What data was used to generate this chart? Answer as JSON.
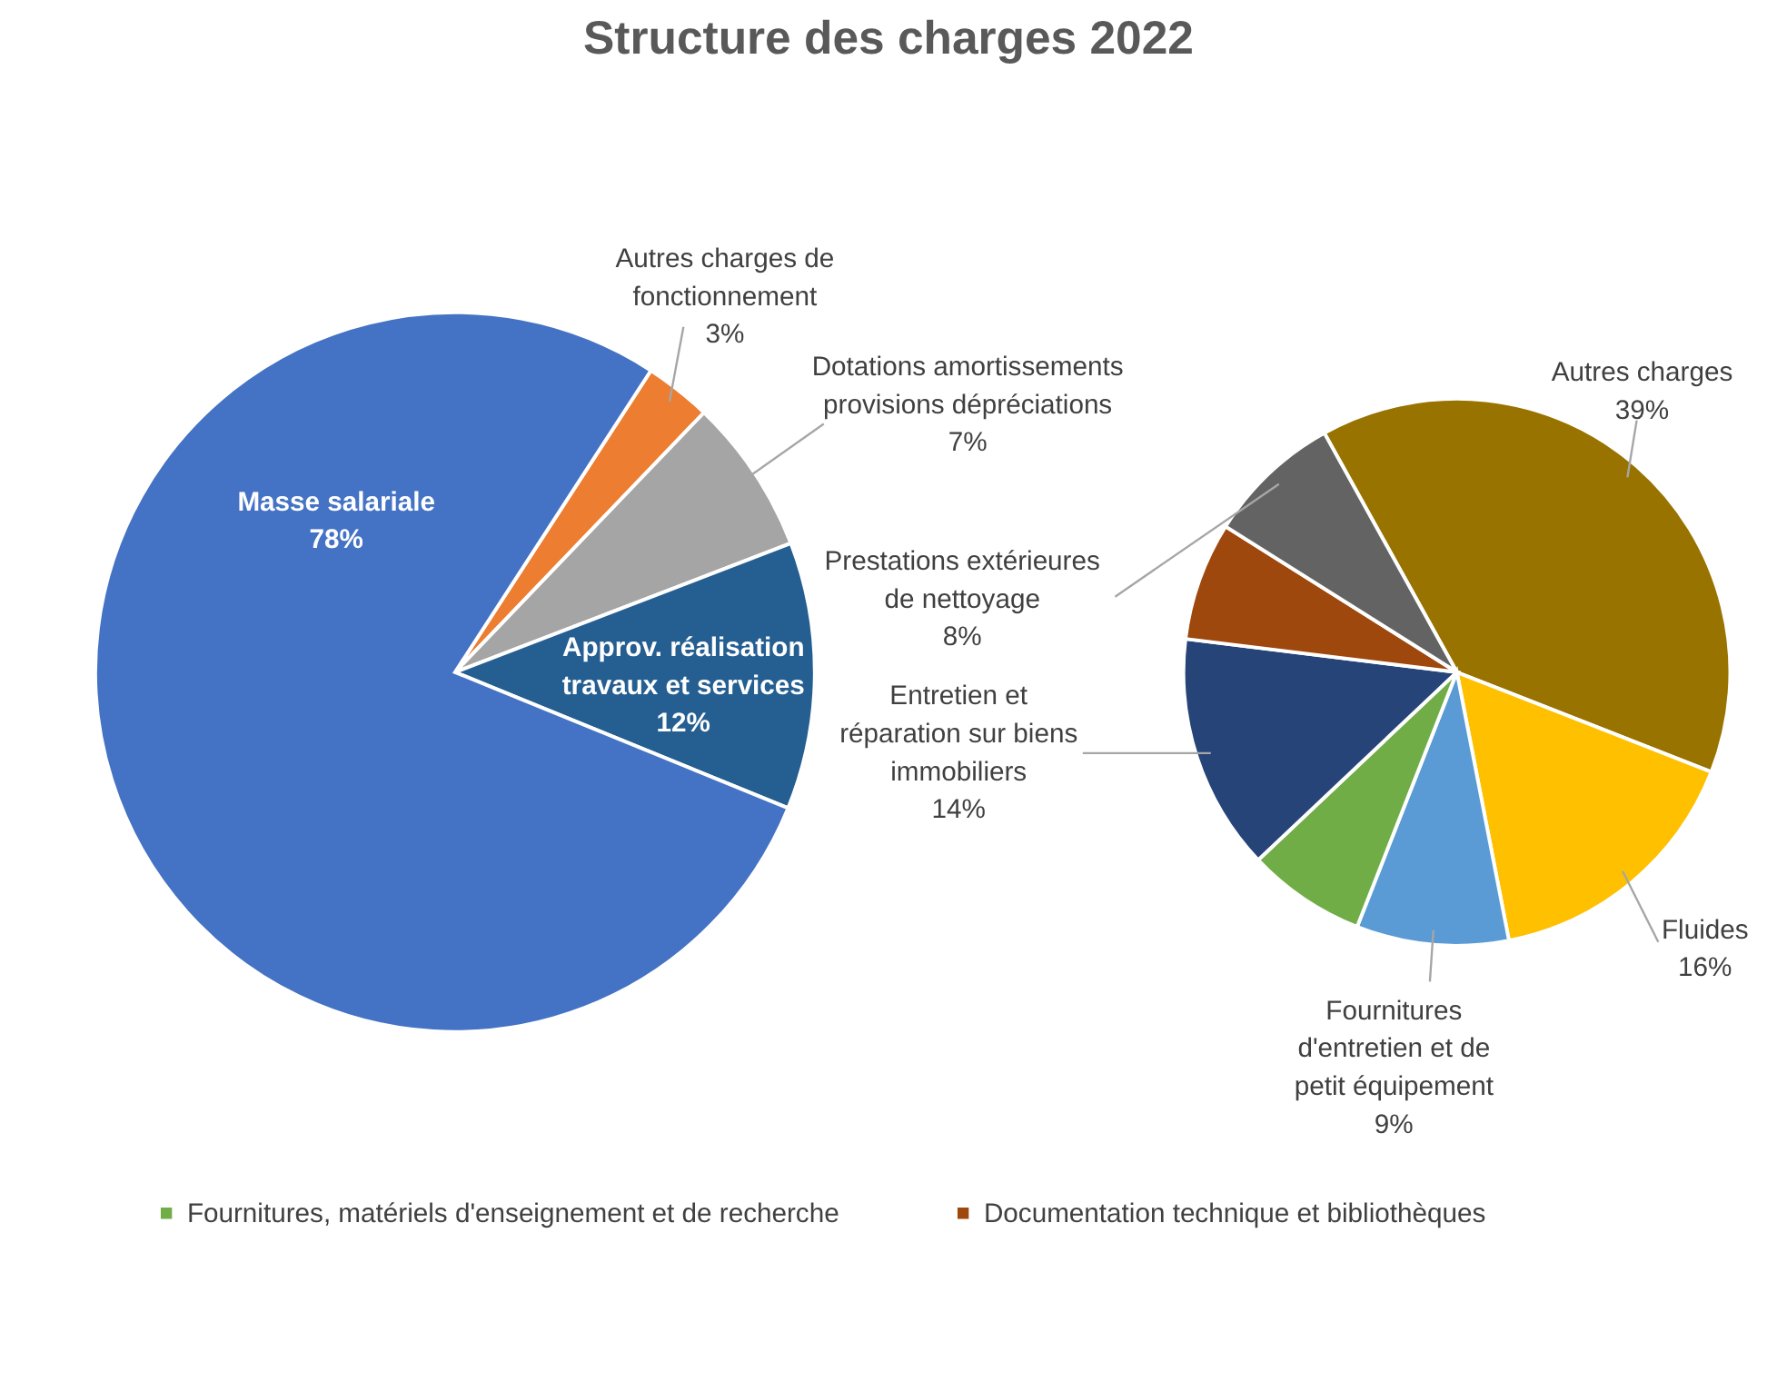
{
  "chart_data": [
    {
      "type": "pie",
      "title": "Structure des charges 2022",
      "categories": [
        "Autres charges de fonctionnement",
        "Dotations amortissements provisions dépréciations",
        "Approv. réalisation travaux et services",
        "Masse salariale"
      ],
      "values": [
        3,
        7,
        12,
        78
      ],
      "value_labels": [
        "3%",
        "7%",
        "12%",
        "78%"
      ],
      "colors": [
        "#ed7d31",
        "#a5a5a5",
        "#255e91",
        "#4472c4"
      ],
      "legend": false
    },
    {
      "type": "pie",
      "categories": [
        "Autres charges",
        "Fluides",
        "Fournitures d'entretien et de petit équipement",
        "Fournitures, matériels d'enseignement et de recherche",
        "Entretien et réparation sur biens immobiliers",
        "Documentation technique et bibliothèques",
        "Prestations extérieures de nettoyage"
      ],
      "values": [
        39,
        16,
        9,
        7,
        14,
        7,
        8
      ],
      "value_labels": [
        "39%",
        "16%",
        "9%",
        null,
        "14%",
        null,
        "8%"
      ],
      "colors": [
        "#997300",
        "#ffc000",
        "#5b9bd5",
        "#70ad47",
        "#264478",
        "#9e480e",
        "#636363"
      ],
      "legend": "bottom"
    }
  ]
}
